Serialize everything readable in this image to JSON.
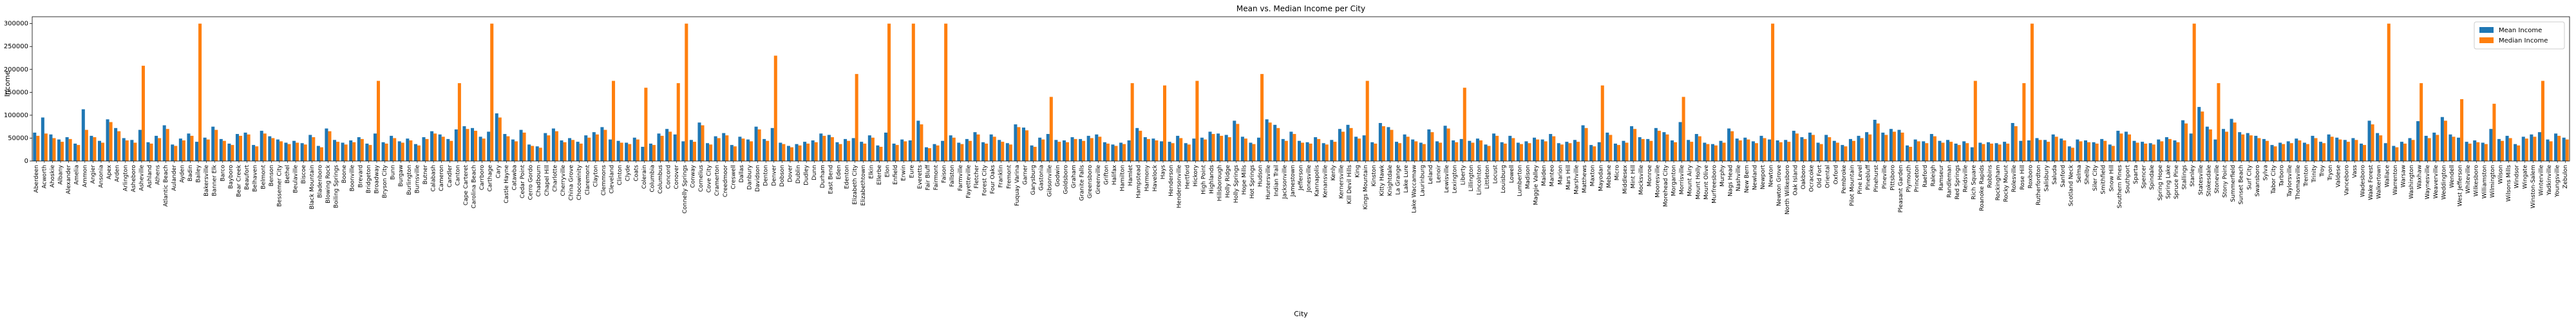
{
  "chart_data": {
    "type": "bar",
    "title": "Mean vs. Median Income per City",
    "x_label": "City",
    "y_label": "Income",
    "categories": [
      "Aberdeen",
      "Acworth",
      "Ahoskie",
      "Albany",
      "Alexander",
      "Amelia",
      "Ammon",
      "Angier",
      "Ansonia",
      "Apex",
      "Arden",
      "Arlington",
      "Asheboro",
      "Asheville",
      "Ashland",
      "Athens",
      "Atlantic Beach",
      "Aulander",
      "Ayden",
      "Badin",
      "Bailey",
      "Bakersville",
      "Banner Elk",
      "Barco",
      "Bayboro",
      "Bear Creek",
      "Beaufort",
      "Belhaven",
      "Belmont",
      "Benson",
      "Bessemer City",
      "Bethel",
      "Beulaville",
      "Biscoe",
      "Black Mountain",
      "Bladenboro",
      "Blowing Rock",
      "Boiling Springs",
      "Boone",
      "Boonville",
      "Brevard",
      "Bridgeton",
      "Broadway",
      "Bryson City",
      "Bunn",
      "Burgaw",
      "Burlington",
      "Burnsville",
      "Butner",
      "Calabash",
      "Cameron",
      "Candler",
      "Canton",
      "Cape Carteret",
      "Carolina Beach",
      "Carrboro",
      "Carthage",
      "Cary",
      "Castle Hayne",
      "Catawba",
      "Cedar Point",
      "Cerro Gordo",
      "Chadbourn",
      "Chapel Hill",
      "Charlotte",
      "Cherryville",
      "China Grove",
      "Chocowinity",
      "Claremont",
      "Clayton",
      "Clemmons",
      "Cleveland",
      "Clinton",
      "Clyde",
      "Coats",
      "Colerain",
      "Columbia",
      "Columbus",
      "Concord",
      "Conover",
      "Connelly Springs",
      "Conway",
      "Cornelius",
      "Cove City",
      "Cramerton",
      "Creedmoor",
      "Creswell",
      "Dallas",
      "Danbury",
      "Davidson",
      "Denton",
      "Denver",
      "Dobson",
      "Dover",
      "Dublin",
      "Dudley",
      "Dunn",
      "Durham",
      "East Bend",
      "Eden",
      "Edenton",
      "Elizabeth City",
      "Elizabethtown",
      "Elkin",
      "Ellerbe",
      "Elon",
      "Enfield",
      "Erwin",
      "Eure",
      "Everetts",
      "Fair Bluff",
      "Fairmont",
      "Faison",
      "Fallston",
      "Farmville",
      "Fayetteville",
      "Fletcher",
      "Forest City",
      "Four Oaks",
      "Franklin",
      "Fremont",
      "Fuquay Varina",
      "Garner",
      "Garysburg",
      "Gastonia",
      "Gibsonville",
      "Godwin",
      "Goldsboro",
      "Graham",
      "Granite Falls",
      "Greensboro",
      "Greenville",
      "Grifton",
      "Halifax",
      "Hamilton",
      "Hamlet",
      "Hampstead",
      "Harmony",
      "Havelock",
      "Hays",
      "Henderson",
      "Hendersonville",
      "Hertford",
      "Hickory",
      "High Point",
      "Highlands",
      "Hillsborough",
      "Holly Ridge",
      "Holly Springs",
      "Hope Mills",
      "Hot Springs",
      "Hudson",
      "Huntersville",
      "Indian Trail",
      "Jacksonville",
      "Jamestown",
      "Jefferson",
      "Jonesville",
      "Kannapolis",
      "Kenansville",
      "Kenly",
      "Kernersville",
      "Kill Devil Hills",
      "King",
      "Kings Mountain",
      "Kinston",
      "Kitty Hawk",
      "Knightdale",
      "La Grange",
      "Lake Lure",
      "Lake Waccamaw",
      "Laurinburg",
      "Leland",
      "Lenoir",
      "Lewisville",
      "Lexington",
      "Liberty",
      "Lillington",
      "Lincolnton",
      "Littleton",
      "Locust",
      "Louisburg",
      "Lowell",
      "Lumberton",
      "Madison",
      "Maggie Valley",
      "Maiden",
      "Manteo",
      "Marion",
      "Mars Hill",
      "Marshville",
      "Matthews",
      "Maxton",
      "Mayodan",
      "Mebane",
      "Micro",
      "Middlesex",
      "Mint Hill",
      "Mocksville",
      "Monroe",
      "Mooresville",
      "Morehead City",
      "Morganton",
      "Morrisville",
      "Mount Airy",
      "Mount Holly",
      "Mount Olive",
      "Murfreesboro",
      "Murphy",
      "Nags Head",
      "Nashville",
      "New Bern",
      "Newland",
      "Newport",
      "Newton",
      "Newton Grove",
      "North Wilkesboro",
      "Oak Island",
      "Oakboro",
      "Ocracoke",
      "Old Fort",
      "Oriental",
      "Oxford",
      "Pembroke",
      "Pilot Mountain",
      "Pine Level",
      "Pinebluff",
      "Pinehurst",
      "Pineville",
      "Pittsboro",
      "Pleasant Garden",
      "Plymouth",
      "Princeton",
      "Raeford",
      "Raleigh",
      "Ramseur",
      "Randleman",
      "Red Springs",
      "Reidsville",
      "Rich Square",
      "Roanoke Rapids",
      "Robbins",
      "Rockingham",
      "Rocky Mount",
      "Rolesville",
      "Rose Hill",
      "Roxboro",
      "Rutherfordton",
      "Salisbury",
      "Saluda",
      "Sanford",
      "Scotland Neck",
      "Selma",
      "Shelby",
      "Siler City",
      "Smithfield",
      "Snow Hill",
      "Southern Pines",
      "Southport",
      "Sparta",
      "Spencer",
      "Spindale",
      "Spring Hope",
      "Spring Lake",
      "Spruce Pine",
      "Stallings",
      "Stanley",
      "Statesville",
      "Stokesdale",
      "Stoneville",
      "Stony Point",
      "Summerfield",
      "Sunset Beach",
      "Surf City",
      "Swansboro",
      "Sylva",
      "Tabor City",
      "Tarboro",
      "Taylorsville",
      "Thomasville",
      "Trenton",
      "Trinity",
      "Troy",
      "Tryon",
      "Valdese",
      "Vanceboro",
      "Vass",
      "Wadesboro",
      "Wake Forest",
      "Walkertown",
      "Wallace",
      "Warrenton",
      "Warsaw",
      "Washington",
      "Waxhaw",
      "Waynesville",
      "Weaverville",
      "Weddington",
      "Wendell",
      "West Jefferson",
      "Whiteville",
      "Wilkesboro",
      "Williamston",
      "Wilmington",
      "Wilson",
      "Wilsons Mills",
      "Windsor",
      "Wingate",
      "Winston-Salem",
      "Winterville",
      "Yadkinville",
      "Youngsville",
      "Zebulon"
    ],
    "series": [
      {
        "name": "Mean Income",
        "color": "#1f77b4",
        "values": [
          62000,
          95000,
          58000,
          47000,
          52000,
          38000,
          113000,
          55000,
          44000,
          91000,
          72000,
          50000,
          46000,
          68000,
          41000,
          55000,
          78000,
          36000,
          49000,
          60000,
          42000,
          51000,
          75000,
          48000,
          38000,
          59000,
          62000,
          35000,
          66000,
          54000,
          47000,
          40000,
          44000,
          39000,
          57000,
          33000,
          71000,
          46000,
          40000,
          45000,
          52000,
          38000,
          60000,
          41000,
          55000,
          43000,
          49000,
          37000,
          52000,
          65000,
          58000,
          48000,
          69000,
          76000,
          72000,
          53000,
          64000,
          104000,
          59000,
          47000,
          68000,
          36000,
          32000,
          61000,
          71000,
          45000,
          50000,
          42000,
          56000,
          63000,
          74000,
          47000,
          44000,
          40000,
          51000,
          31000,
          38000,
          60000,
          70000,
          58000,
          43000,
          46000,
          84000,
          39000,
          54000,
          61000,
          35000,
          53000,
          47000,
          75000,
          48000,
          72000,
          40000,
          33000,
          37000,
          42000,
          45000,
          60000,
          57000,
          41000,
          48000,
          50000,
          42000,
          56000,
          34000,
          62000,
          38000,
          47000,
          45000,
          88000,
          30000,
          37000,
          44000,
          56000,
          40000,
          48000,
          63000,
          41000,
          58000,
          46000,
          39000,
          80000,
          73000,
          34000,
          51000,
          59000,
          46000,
          45000,
          52000,
          48000,
          55000,
          58000,
          41000,
          36000,
          40000,
          45000,
          72000,
          52000,
          49000,
          43000,
          42000,
          55000,
          39000,
          49000,
          51000,
          64000,
          60000,
          57000,
          88000,
          53000,
          40000,
          51000,
          91000,
          79000,
          48000,
          64000,
          44000,
          41000,
          52000,
          39000,
          46000,
          70000,
          79000,
          53000,
          56000,
          41000,
          83000,
          74000,
          42000,
          58000,
          47000,
          40000,
          69000,
          43000,
          77000,
          45000,
          48000,
          44000,
          49000,
          36000,
          60000,
          41000,
          55000,
          40000,
          43000,
          51000,
          47000,
          59000,
          39000,
          42000,
          46000,
          78000,
          35000,
          41000,
          62000,
          38000,
          44000,
          76000,
          52000,
          48000,
          72000,
          63000,
          45000,
          85000,
          46000,
          59000,
          40000,
          37000,
          44000,
          71000,
          49000,
          51000,
          43000,
          55000,
          47000,
          45000,
          46000,
          66000,
          52000,
          62000,
          40000,
          57000,
          44000,
          35000,
          48000,
          55000,
          63000,
          90000,
          62000,
          70000,
          68000,
          34000,
          47000,
          43000,
          59000,
          44000,
          46000,
          38000,
          43000,
          30000,
          40000,
          41000,
          39000,
          42000,
          83000,
          44000,
          45000,
          50000,
          46000,
          58000,
          49000,
          32000,
          47000,
          45000,
          41000,
          48000,
          36000,
          66000,
          64000,
          44000,
          42000,
          39000,
          47000,
          52000,
          45000,
          89000,
          60000,
          118000,
          75000,
          47000,
          70000,
          92000,
          63000,
          61000,
          55000,
          48000,
          35000,
          40000,
          43000,
          49000,
          40000,
          55000,
          42000,
          58000,
          51000,
          46000,
          50000,
          38000,
          88000,
          61000,
          39000,
          33000,
          42000,
          50000,
          87000,
          55000,
          62000,
          96000,
          58000,
          51000,
          42000,
          45000,
          40000,
          70000,
          48000,
          55000,
          37000,
          53000,
          58000,
          63000,
          47000,
          60000,
          51000
        ]
      },
      {
        "name": "Median Income",
        "color": "#ff7f0e",
        "values": [
          55000,
          60000,
          50000,
          42000,
          48000,
          35000,
          68000,
          52000,
          40000,
          85000,
          65000,
          45000,
          40000,
          208000,
          38000,
          50000,
          70000,
          33000,
          45000,
          55000,
          300000,
          47000,
          68000,
          44000,
          35000,
          55000,
          58000,
          32000,
          60000,
          50000,
          43000,
          37000,
          40000,
          36000,
          52000,
          30000,
          65000,
          42000,
          36000,
          41000,
          48000,
          35000,
          175000,
          38000,
          50000,
          40000,
          45000,
          34000,
          48000,
          60000,
          53000,
          44000,
          170000,
          70000,
          66000,
          49000,
          300000,
          95000,
          54000,
          43000,
          62000,
          33000,
          29000,
          56000,
          65000,
          41000,
          46000,
          38000,
          51000,
          58000,
          68000,
          175000,
          40000,
          37000,
          47000,
          160000,
          35000,
          55000,
          64000,
          170000,
          300000,
          42000,
          78000,
          36000,
          50000,
          56000,
          32000,
          49000,
          43000,
          69000,
          44000,
          230000,
          37000,
          30000,
          34000,
          38000,
          41000,
          55000,
          52000,
          37000,
          44000,
          190000,
          38000,
          51000,
          31000,
          300000,
          35000,
          43000,
          300000,
          80000,
          28000,
          34000,
          300000,
          51000,
          37000,
          44000,
          58000,
          38000,
          53000,
          42000,
          36000,
          74000,
          67000,
          31000,
          47000,
          140000,
          42000,
          41000,
          48000,
          44000,
          50000,
          53000,
          38000,
          33000,
          37000,
          170000,
          66000,
          48000,
          45000,
          165000,
          39000,
          50000,
          36000,
          175000,
          47000,
          59000,
          55000,
          52000,
          81000,
          49000,
          37000,
          190000,
          84000,
          72000,
          44000,
          59000,
          40000,
          38000,
          48000,
          36000,
          42000,
          64000,
          72000,
          49000,
          175000,
          38000,
          76000,
          68000,
          39000,
          53000,
          43000,
          37000,
          63000,
          40000,
          71000,
          41000,
          160000,
          40000,
          45000,
          33000,
          55000,
          38000,
          50000,
          37000,
          39000,
          47000,
          43000,
          54000,
          36000,
          39000,
          42000,
          72000,
          32000,
          165000,
          57000,
          35000,
          40000,
          70000,
          48000,
          44000,
          66000,
          58000,
          41000,
          140000,
          42000,
          54000,
          37000,
          34000,
          40000,
          65000,
          45000,
          47000,
          39000,
          50000,
          300000,
          41000,
          42000,
          60000,
          48000,
          57000,
          37000,
          52000,
          40000,
          32000,
          44000,
          50000,
          58000,
          82000,
          57000,
          64000,
          62000,
          31000,
          43000,
          39000,
          54000,
          40000,
          42000,
          35000,
          39000,
          175000,
          37000,
          38000,
          36000,
          38000,
          76000,
          170000,
          300000,
          46000,
          42000,
          53000,
          45000,
          29000,
          43000,
          41000,
          38000,
          44000,
          33000,
          60000,
          58000,
          40000,
          38000,
          36000,
          43000,
          48000,
          41000,
          82000,
          300000,
          108000,
          69000,
          170000,
          64000,
          84000,
          58000,
          56000,
          50000,
          44000,
          32000,
          37000,
          39000,
          45000,
          37000,
          50000,
          39000,
          53000,
          47000,
          42000,
          46000,
          35000,
          80000,
          56000,
          300000,
          30000,
          38000,
          46000,
          170000,
          50000,
          57000,
          88000,
          53000,
          135000,
          38000,
          41000,
          37000,
          125000,
          44000,
          50000,
          34000,
          49000,
          53000,
          175000,
          43000,
          55000,
          47000
        ]
      }
    ],
    "ylim": [
      0,
      315000
    ],
    "yticks": [
      0,
      50000,
      100000,
      150000,
      200000,
      250000,
      300000
    ],
    "legend": "upper right",
    "grid": false
  }
}
